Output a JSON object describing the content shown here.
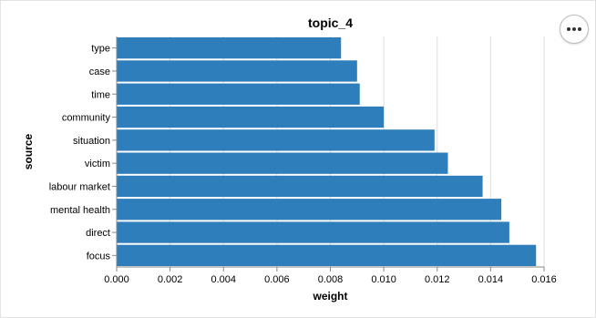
{
  "chart_data": {
    "type": "bar",
    "orientation": "horizontal",
    "title": "topic_4",
    "xlabel": "weight",
    "ylabel": "source",
    "xlim": [
      0,
      0.016
    ],
    "x_ticks": [
      "0.000",
      "0.002",
      "0.004",
      "0.006",
      "0.008",
      "0.010",
      "0.012",
      "0.014",
      "0.016"
    ],
    "grid": true,
    "bar_color": "#2e7ebc",
    "categories": [
      "type",
      "case",
      "time",
      "community",
      "situation",
      "victim",
      "labour market",
      "mental health",
      "direct",
      "focus"
    ],
    "values": [
      0.0084,
      0.009,
      0.0091,
      0.01,
      0.0119,
      0.0124,
      0.0137,
      0.0144,
      0.0147,
      0.0157
    ]
  },
  "toolbar": {
    "menu_icon": "ellipsis-icon"
  }
}
